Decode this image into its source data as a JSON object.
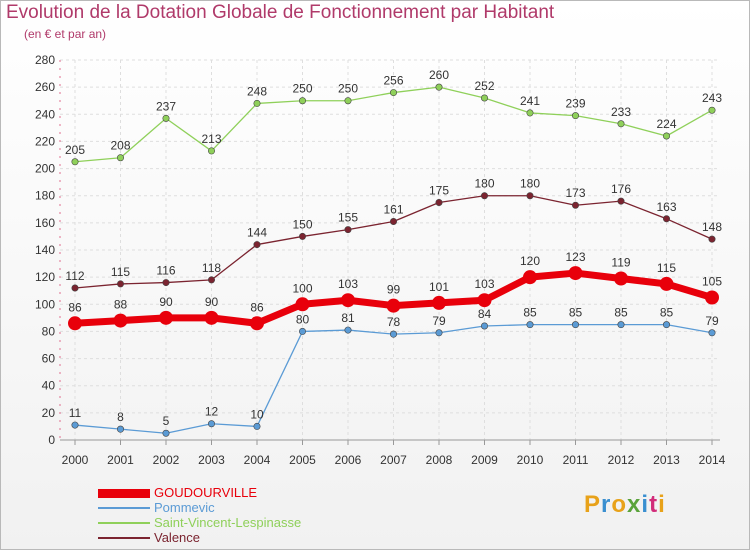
{
  "title": "Evolution de la Dotation Globale de Fonctionnement par Habitant",
  "subtitle": "(en € et par an)",
  "logo": {
    "text": "Proxiti",
    "colors": [
      "#e8a21a",
      "#3a8fd0",
      "#e8a21a",
      "#5aa33a",
      "#3a8fd0",
      "#d22c7a",
      "#e8a21a"
    ]
  },
  "chart_data": {
    "type": "line",
    "title": "Evolution de la Dotation Globale de Fonctionnement par Habitant",
    "subtitle": "(en € et par an)",
    "x": [
      "2000",
      "2001",
      "2002",
      "2003",
      "2004",
      "2005",
      "2006",
      "2007",
      "2008",
      "2009",
      "2010",
      "2011",
      "2012",
      "2013",
      "2014"
    ],
    "ylim": [
      0,
      280
    ],
    "yticks": [
      0,
      20,
      40,
      60,
      80,
      100,
      120,
      140,
      160,
      180,
      200,
      220,
      240,
      260,
      280
    ],
    "grid": true,
    "legend_position": "bottom-left",
    "series": [
      {
        "name": "GOUDOURVILLE",
        "color": "#e8000b",
        "emphasis": true,
        "values": [
          86,
          88,
          90,
          90,
          86,
          100,
          103,
          99,
          101,
          103,
          120,
          123,
          119,
          115,
          105
        ]
      },
      {
        "name": "Pommevic",
        "color": "#5b9bd5",
        "emphasis": false,
        "values": [
          11,
          8,
          5,
          12,
          10,
          80,
          81,
          78,
          79,
          84,
          85,
          85,
          85,
          85,
          79
        ]
      },
      {
        "name": "Saint-Vincent-Lespinasse",
        "color": "#8fd05a",
        "emphasis": false,
        "values": [
          205,
          208,
          237,
          213,
          248,
          250,
          250,
          256,
          260,
          252,
          241,
          239,
          233,
          224,
          243
        ]
      },
      {
        "name": "Valence",
        "color": "#7b2430",
        "emphasis": false,
        "values": [
          112,
          115,
          116,
          118,
          144,
          150,
          155,
          161,
          175,
          180,
          180,
          173,
          176,
          163,
          148
        ]
      }
    ]
  }
}
